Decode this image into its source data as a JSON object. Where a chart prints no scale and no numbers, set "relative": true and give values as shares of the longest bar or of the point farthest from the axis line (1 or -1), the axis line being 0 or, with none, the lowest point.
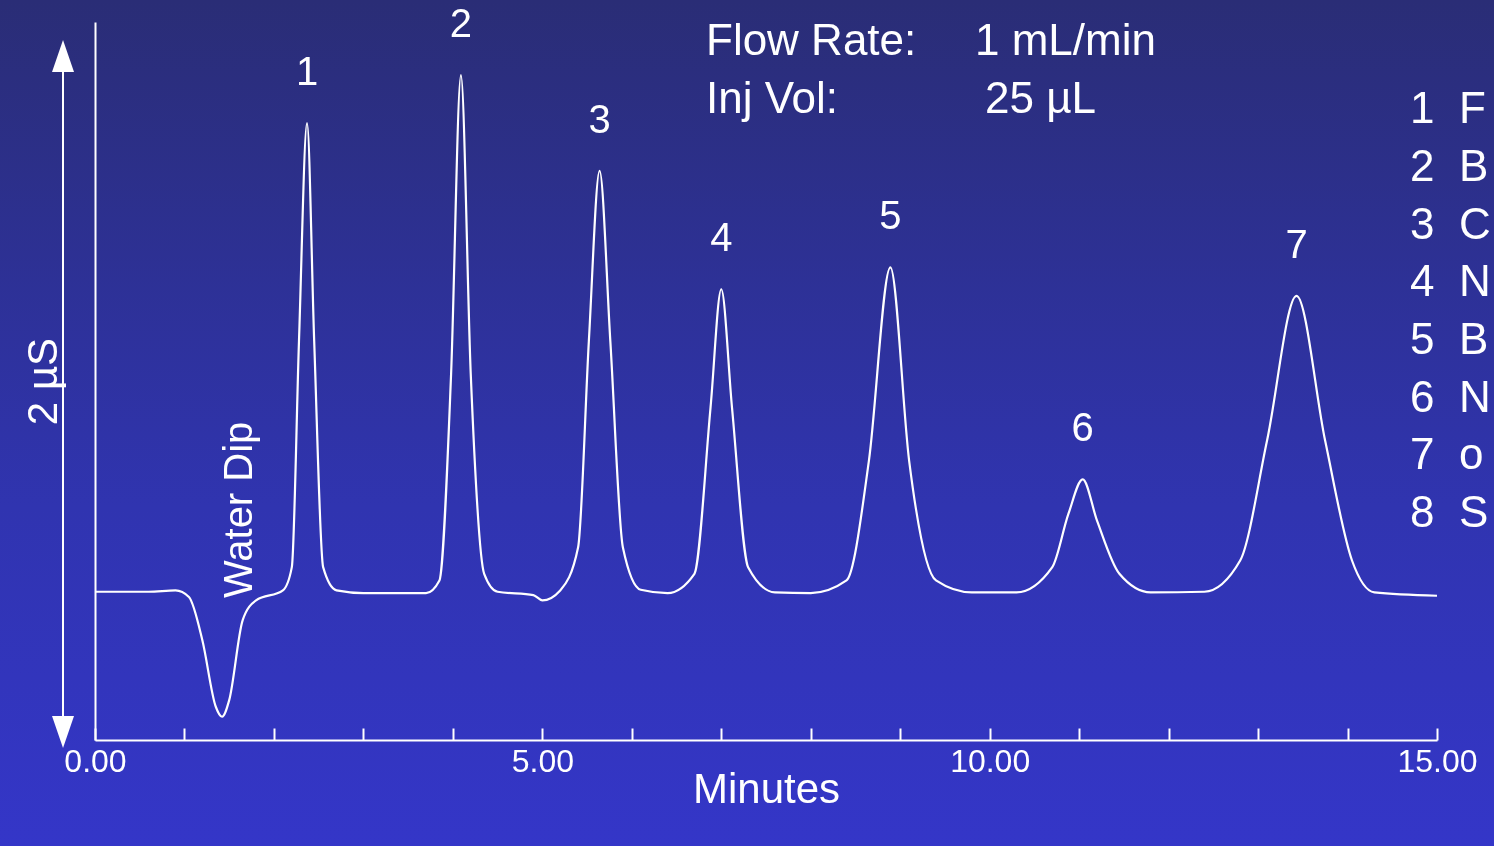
{
  "chart_data": {
    "type": "line",
    "relative": true,
    "xlabel": "Minutes",
    "ylabel": "2 µS",
    "grid": false,
    "color": "#ffffff",
    "xlim": [
      0,
      15
    ],
    "xticks": [
      {
        "value": 0,
        "label": "0.00"
      },
      {
        "value": 1,
        "label": null
      },
      {
        "value": 2,
        "label": null
      },
      {
        "value": 3,
        "label": null
      },
      {
        "value": 4,
        "label": null
      },
      {
        "value": 5,
        "label": "5.00"
      },
      {
        "value": 6,
        "label": null
      },
      {
        "value": 7,
        "label": null
      },
      {
        "value": 8,
        "label": null
      },
      {
        "value": 9,
        "label": null
      },
      {
        "value": 10,
        "label": "10.00"
      },
      {
        "value": 11,
        "label": null
      },
      {
        "value": 12,
        "label": null
      },
      {
        "value": 13,
        "label": null
      },
      {
        "value": 14,
        "label": null
      },
      {
        "value": 15,
        "label": "15.00"
      }
    ],
    "x": [
      0,
      0.6,
      0.9,
      1.05,
      1.2,
      1.35,
      1.42,
      1.5,
      1.65,
      1.8,
      2.1,
      2.2,
      2.28,
      2.37,
      2.45,
      2.55,
      2.7,
      3.0,
      3.7,
      3.85,
      3.98,
      4.09,
      4.2,
      4.35,
      4.5,
      4.9,
      5.0,
      5.2,
      5.4,
      5.52,
      5.64,
      5.76,
      5.9,
      6.1,
      6.4,
      6.7,
      6.88,
      7.0,
      7.12,
      7.3,
      7.6,
      8.0,
      8.4,
      8.65,
      8.89,
      9.1,
      9.4,
      9.8,
      10.3,
      10.7,
      10.88,
      11.04,
      11.2,
      11.45,
      11.8,
      12.4,
      12.8,
      13.1,
      13.43,
      13.75,
      14.05,
      14.3,
      15.0
    ],
    "values": [
      0.223,
      0.223,
      0.225,
      0.215,
      0.15,
      0.05,
      0.035,
      0.06,
      0.18,
      0.21,
      0.225,
      0.26,
      0.6,
      0.928,
      0.6,
      0.26,
      0.225,
      0.221,
      0.221,
      0.24,
      0.55,
      1.0,
      0.55,
      0.25,
      0.223,
      0.218,
      0.21,
      0.225,
      0.29,
      0.6,
      0.856,
      0.6,
      0.29,
      0.226,
      0.221,
      0.25,
      0.5,
      0.678,
      0.5,
      0.26,
      0.222,
      0.221,
      0.24,
      0.42,
      0.711,
      0.42,
      0.24,
      0.222,
      0.222,
      0.26,
      0.34,
      0.392,
      0.33,
      0.25,
      0.222,
      0.223,
      0.27,
      0.45,
      0.668,
      0.45,
      0.27,
      0.222,
      0.217
    ],
    "annotations": [
      {
        "text": "1",
        "x": 2.37,
        "y": 0.928
      },
      {
        "text": "2",
        "x": 4.09,
        "y": 1.0
      },
      {
        "text": "3",
        "x": 5.64,
        "y": 0.856
      },
      {
        "text": "4",
        "x": 7.0,
        "y": 0.678
      },
      {
        "text": "5",
        "x": 8.89,
        "y": 0.711
      },
      {
        "text": "6",
        "x": 11.04,
        "y": 0.392
      },
      {
        "text": "7",
        "x": 13.43,
        "y": 0.668
      },
      "Water Dip",
      "Flow Rate:",
      "1 mL/min",
      "Inj Vol:",
      "25 µL",
      "1  F",
      "2  B",
      "3  C",
      "4  N",
      "5  B",
      "6  N",
      "7  o",
      "8  S"
    ]
  }
}
